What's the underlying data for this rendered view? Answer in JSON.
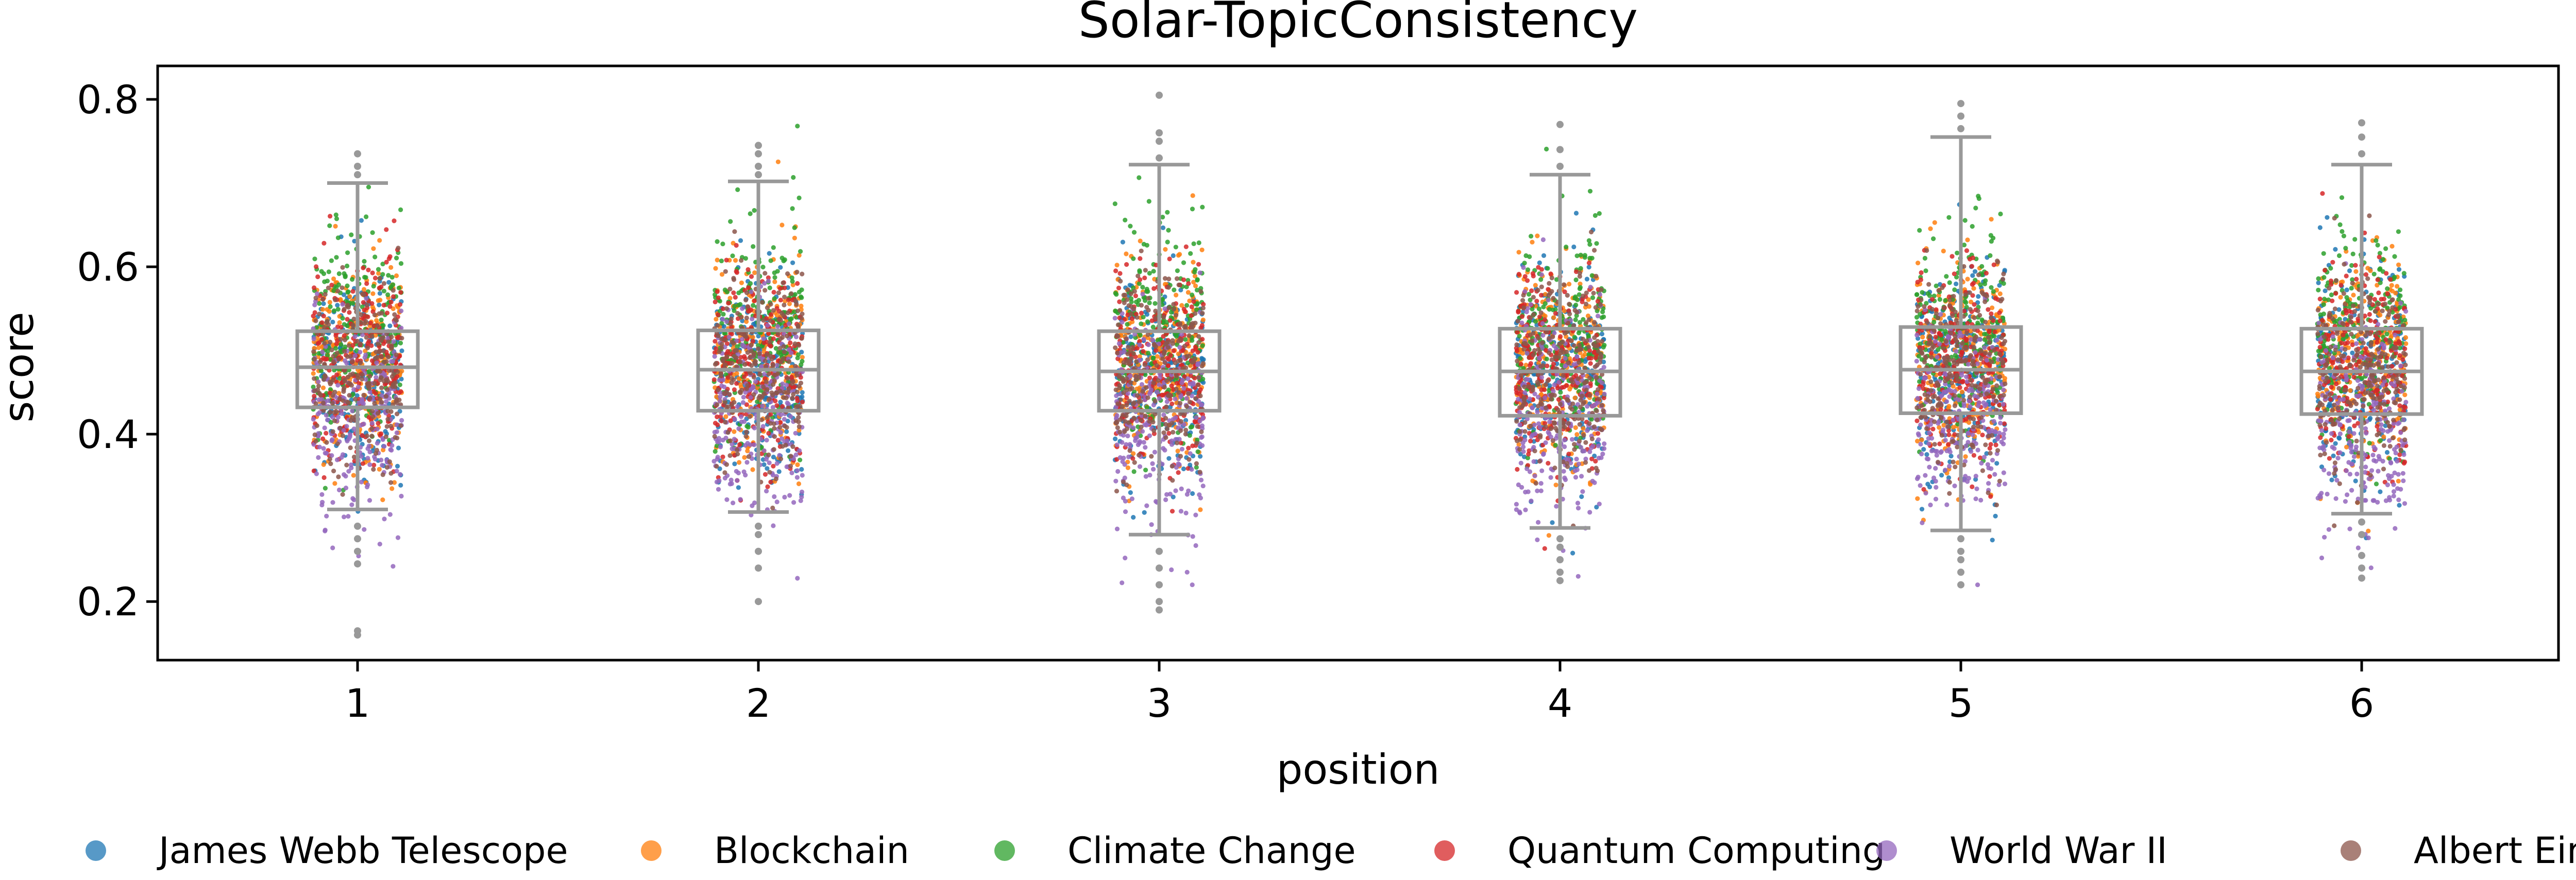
{
  "chart_data": {
    "type": "box+strip",
    "title": "Solar-TopicConsistency",
    "xlabel": "position",
    "ylabel": "score",
    "categories": [
      "1",
      "2",
      "3",
      "4",
      "5",
      "6"
    ],
    "ylim": [
      0.13,
      0.84
    ],
    "yticks": [
      0.2,
      0.4,
      0.6,
      0.8
    ],
    "ytick_labels": [
      "0.2",
      "0.4",
      "0.6",
      "0.8"
    ],
    "grid": false,
    "legend_position": "bottom",
    "box_color": "#999999",
    "boxes": [
      {
        "category": "1",
        "whisker_low": 0.31,
        "q1": 0.432,
        "median": 0.48,
        "q3": 0.523,
        "whisker_high": 0.7
      },
      {
        "category": "2",
        "whisker_low": 0.307,
        "q1": 0.428,
        "median": 0.477,
        "q3": 0.524,
        "whisker_high": 0.702
      },
      {
        "category": "3",
        "whisker_low": 0.28,
        "q1": 0.428,
        "median": 0.475,
        "q3": 0.523,
        "whisker_high": 0.722
      },
      {
        "category": "4",
        "whisker_low": 0.288,
        "q1": 0.422,
        "median": 0.475,
        "q3": 0.526,
        "whisker_high": 0.71
      },
      {
        "category": "5",
        "whisker_low": 0.285,
        "q1": 0.425,
        "median": 0.477,
        "q3": 0.528,
        "whisker_high": 0.755
      },
      {
        "category": "6",
        "whisker_low": 0.305,
        "q1": 0.424,
        "median": 0.475,
        "q3": 0.526,
        "whisker_high": 0.722
      }
    ],
    "outliers": [
      {
        "category": "1",
        "values": [
          0.16,
          0.165,
          0.245,
          0.26,
          0.275,
          0.29,
          0.71,
          0.72,
          0.735
        ]
      },
      {
        "category": "2",
        "values": [
          0.2,
          0.24,
          0.26,
          0.28,
          0.29,
          0.71,
          0.72,
          0.735,
          0.745
        ]
      },
      {
        "category": "3",
        "values": [
          0.19,
          0.2,
          0.22,
          0.24,
          0.26,
          0.73,
          0.75,
          0.76,
          0.805
        ]
      },
      {
        "category": "4",
        "values": [
          0.225,
          0.235,
          0.25,
          0.265,
          0.275,
          0.72,
          0.74,
          0.77
        ]
      },
      {
        "category": "5",
        "values": [
          0.22,
          0.235,
          0.25,
          0.26,
          0.275,
          0.765,
          0.78,
          0.795
        ]
      },
      {
        "category": "6",
        "values": [
          0.228,
          0.24,
          0.255,
          0.28,
          0.295,
          0.735,
          0.755,
          0.772
        ]
      }
    ],
    "series": [
      {
        "name": "James Webb Telescope",
        "color": "#1f77b4",
        "center": 0.475,
        "spread": 0.065
      },
      {
        "name": "Blockchain",
        "color": "#ff7f0e",
        "center": 0.49,
        "spread": 0.06
      },
      {
        "name": "Climate Change",
        "color": "#2ca02c",
        "center": 0.52,
        "spread": 0.065
      },
      {
        "name": "Quantum Computing",
        "color": "#d62728",
        "center": 0.48,
        "spread": 0.06
      },
      {
        "name": "World War II",
        "color": "#9467bd",
        "center": 0.42,
        "spread": 0.065
      },
      {
        "name": "Albert Einstein",
        "color": "#8c564b",
        "center": 0.475,
        "spread": 0.06
      }
    ]
  }
}
